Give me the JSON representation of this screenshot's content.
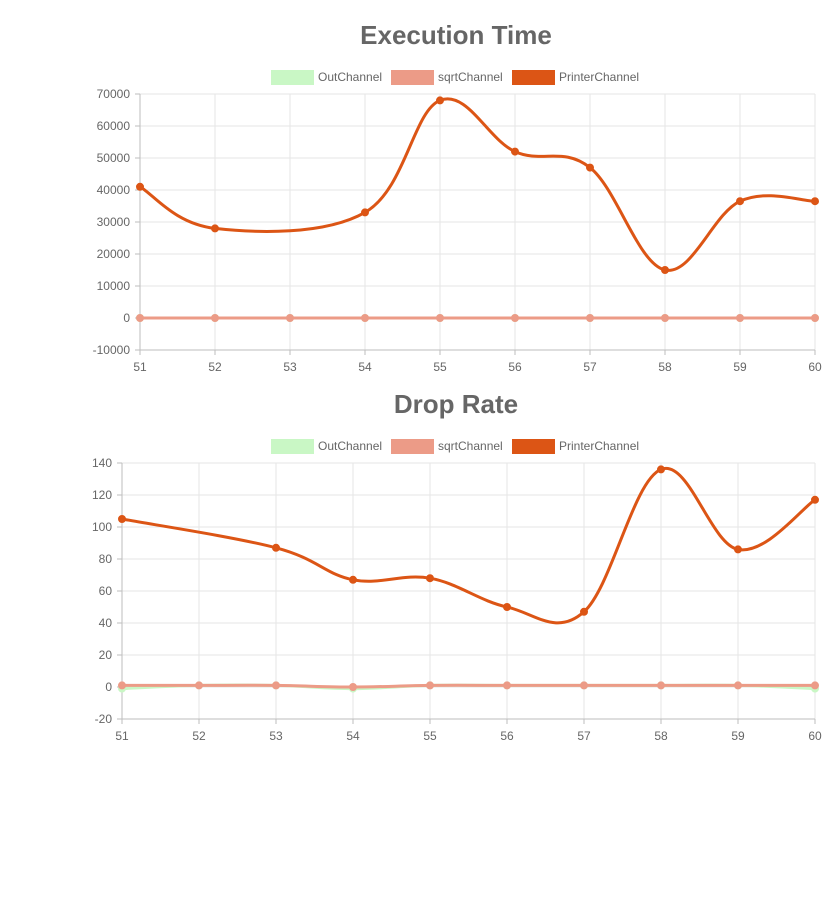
{
  "chart_data": [
    {
      "type": "line",
      "title": "Execution Time",
      "x": [
        51,
        52,
        53,
        54,
        55,
        56,
        57,
        58,
        59,
        60
      ],
      "ylim": [
        -10000,
        70000
      ],
      "yticks": [
        -10000,
        0,
        10000,
        20000,
        30000,
        40000,
        50000,
        60000,
        70000
      ],
      "grid": true,
      "legend_position": "top",
      "series": [
        {
          "name": "OutChannel",
          "color": "#c9f7c5",
          "values": [
            0,
            0,
            0,
            0,
            0,
            0,
            0,
            0,
            0,
            0
          ]
        },
        {
          "name": "sqrtChannel",
          "color": "#ec9b87",
          "values": [
            0,
            0,
            0,
            0,
            0,
            0,
            0,
            0,
            0,
            0
          ]
        },
        {
          "name": "PrinterChannel",
          "color": "#dc5515",
          "values": [
            41000,
            28000,
            null,
            33000,
            68000,
            52000,
            47000,
            15000,
            36500,
            36500
          ]
        }
      ]
    },
    {
      "type": "line",
      "title": "Drop Rate",
      "x": [
        51,
        52,
        53,
        54,
        55,
        56,
        57,
        58,
        59,
        60
      ],
      "ylim": [
        -20,
        140
      ],
      "yticks": [
        -20,
        0,
        20,
        40,
        60,
        80,
        100,
        120,
        140
      ],
      "grid": true,
      "legend_position": "top",
      "series": [
        {
          "name": "OutChannel",
          "color": "#c9f7c5",
          "values": [
            -1,
            1,
            1,
            -1,
            1,
            1,
            1,
            1,
            1,
            -1
          ]
        },
        {
          "name": "sqrtChannel",
          "color": "#ec9b87",
          "values": [
            1,
            1,
            1,
            0,
            1,
            1,
            1,
            1,
            1,
            1
          ]
        },
        {
          "name": "PrinterChannel",
          "color": "#dc5515",
          "values": [
            105,
            null,
            87,
            67,
            68,
            50,
            47,
            136,
            86,
            117
          ]
        }
      ]
    }
  ]
}
